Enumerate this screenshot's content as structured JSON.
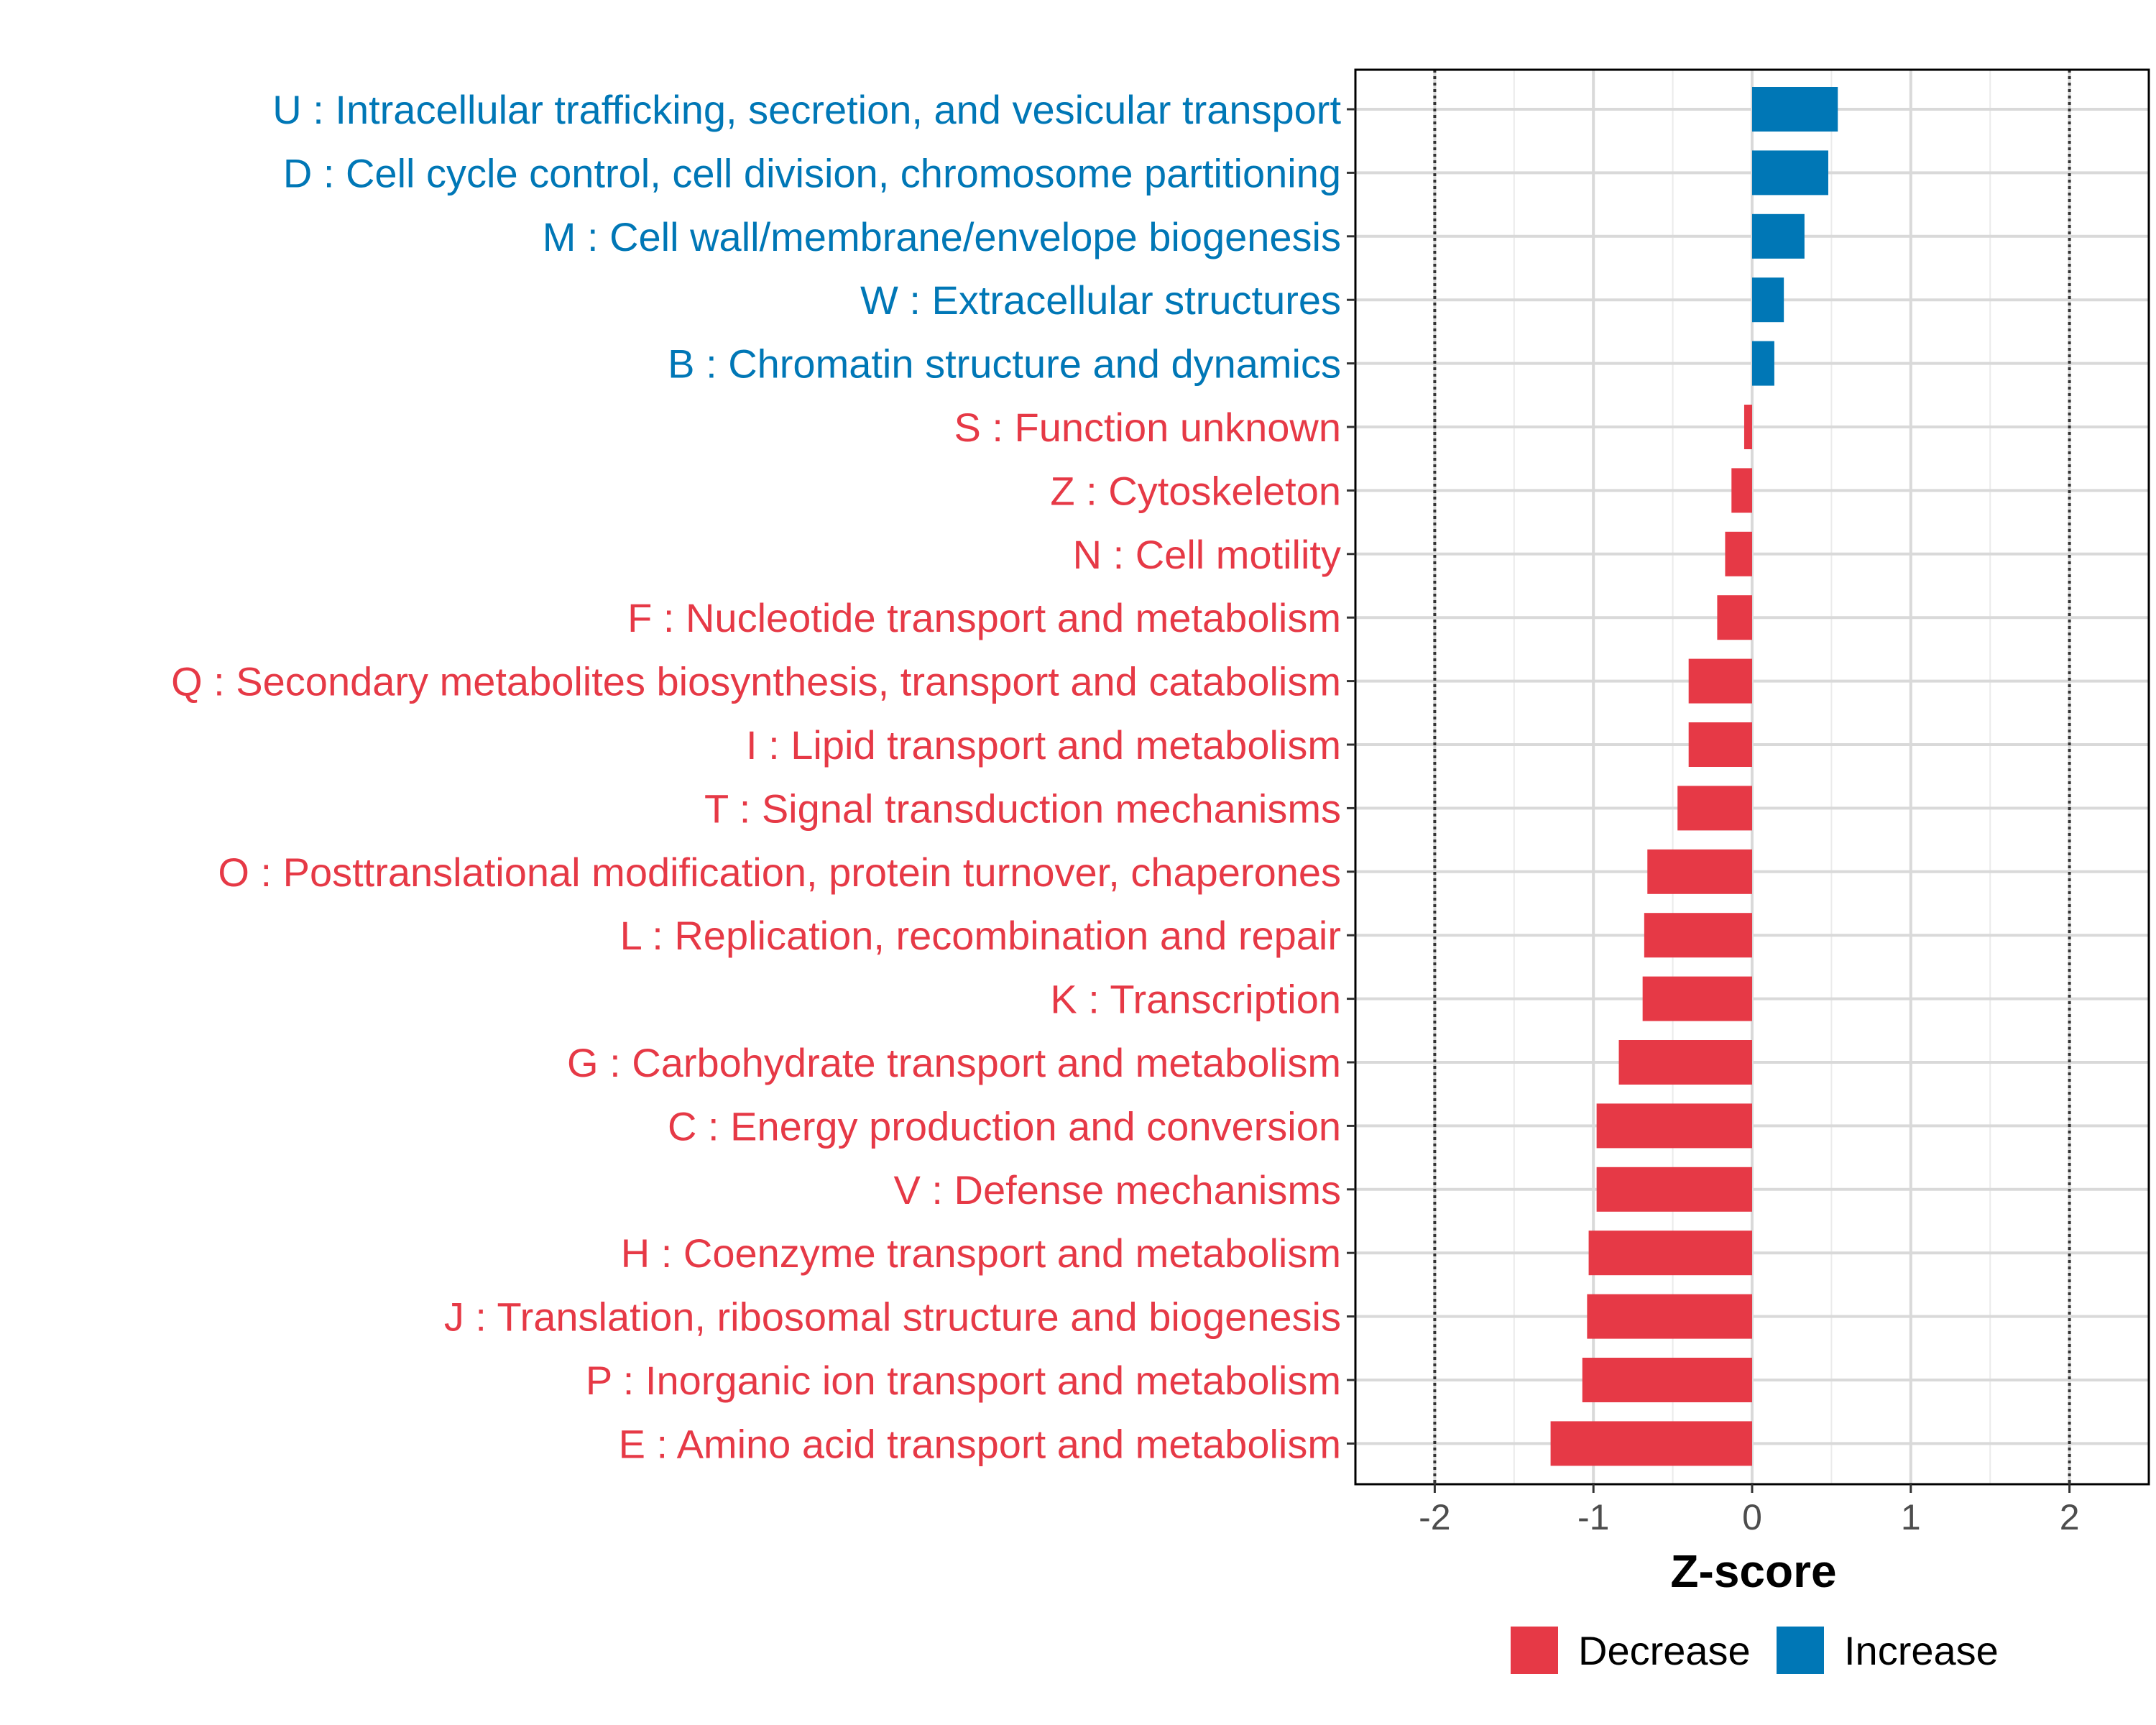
{
  "chart_data": {
    "type": "bar",
    "orientation": "horizontal",
    "xlabel": "Z-score",
    "xlim": [
      -2.5,
      2.5
    ],
    "xticks": [
      -2,
      -1,
      0,
      1,
      2
    ],
    "xtick_labels": [
      "-2",
      "-1",
      "0",
      "1",
      "2"
    ],
    "reference_lines": [
      -2,
      2
    ],
    "grid": true,
    "legend_position": "bottom",
    "colors": {
      "Decrease": "#e63946",
      "Increase": "#0077b6"
    },
    "legend": [
      {
        "name": "Decrease",
        "label": "Decrease"
      },
      {
        "name": "Increase",
        "label": "Increase"
      }
    ],
    "bars": [
      {
        "label": "U : Intracellular trafficking, secretion, and vesicular transport",
        "value": 0.54,
        "group": "Increase"
      },
      {
        "label": "D : Cell cycle control, cell division, chromosome partitioning",
        "value": 0.48,
        "group": "Increase"
      },
      {
        "label": "M : Cell wall/membrane/envelope biogenesis",
        "value": 0.33,
        "group": "Increase"
      },
      {
        "label": "W : Extracellular structures",
        "value": 0.2,
        "group": "Increase"
      },
      {
        "label": "B : Chromatin structure and dynamics",
        "value": 0.14,
        "group": "Increase"
      },
      {
        "label": "S : Function unknown",
        "value": -0.05,
        "group": "Decrease"
      },
      {
        "label": "Z : Cytoskeleton",
        "value": -0.13,
        "group": "Decrease"
      },
      {
        "label": "N : Cell motility",
        "value": -0.17,
        "group": "Decrease"
      },
      {
        "label": "F : Nucleotide transport and metabolism",
        "value": -0.22,
        "group": "Decrease"
      },
      {
        "label": "Q : Secondary metabolites biosynthesis, transport and catabolism",
        "value": -0.4,
        "group": "Decrease"
      },
      {
        "label": "I : Lipid transport and metabolism",
        "value": -0.4,
        "group": "Decrease"
      },
      {
        "label": "T : Signal transduction mechanisms",
        "value": -0.47,
        "group": "Decrease"
      },
      {
        "label": "O : Posttranslational modification, protein turnover, chaperones",
        "value": -0.66,
        "group": "Decrease"
      },
      {
        "label": "L : Replication, recombination and repair",
        "value": -0.68,
        "group": "Decrease"
      },
      {
        "label": "K : Transcription",
        "value": -0.69,
        "group": "Decrease"
      },
      {
        "label": "G : Carbohydrate transport and metabolism",
        "value": -0.84,
        "group": "Decrease"
      },
      {
        "label": "C : Energy production and conversion",
        "value": -0.98,
        "group": "Decrease"
      },
      {
        "label": "V : Defense mechanisms",
        "value": -0.98,
        "group": "Decrease"
      },
      {
        "label": "H : Coenzyme transport and metabolism",
        "value": -1.03,
        "group": "Decrease"
      },
      {
        "label": "J : Translation, ribosomal structure and biogenesis",
        "value": -1.04,
        "group": "Decrease"
      },
      {
        "label": "P : Inorganic ion transport and metabolism",
        "value": -1.07,
        "group": "Decrease"
      },
      {
        "label": "E : Amino acid transport and metabolism",
        "value": -1.27,
        "group": "Decrease"
      }
    ]
  }
}
